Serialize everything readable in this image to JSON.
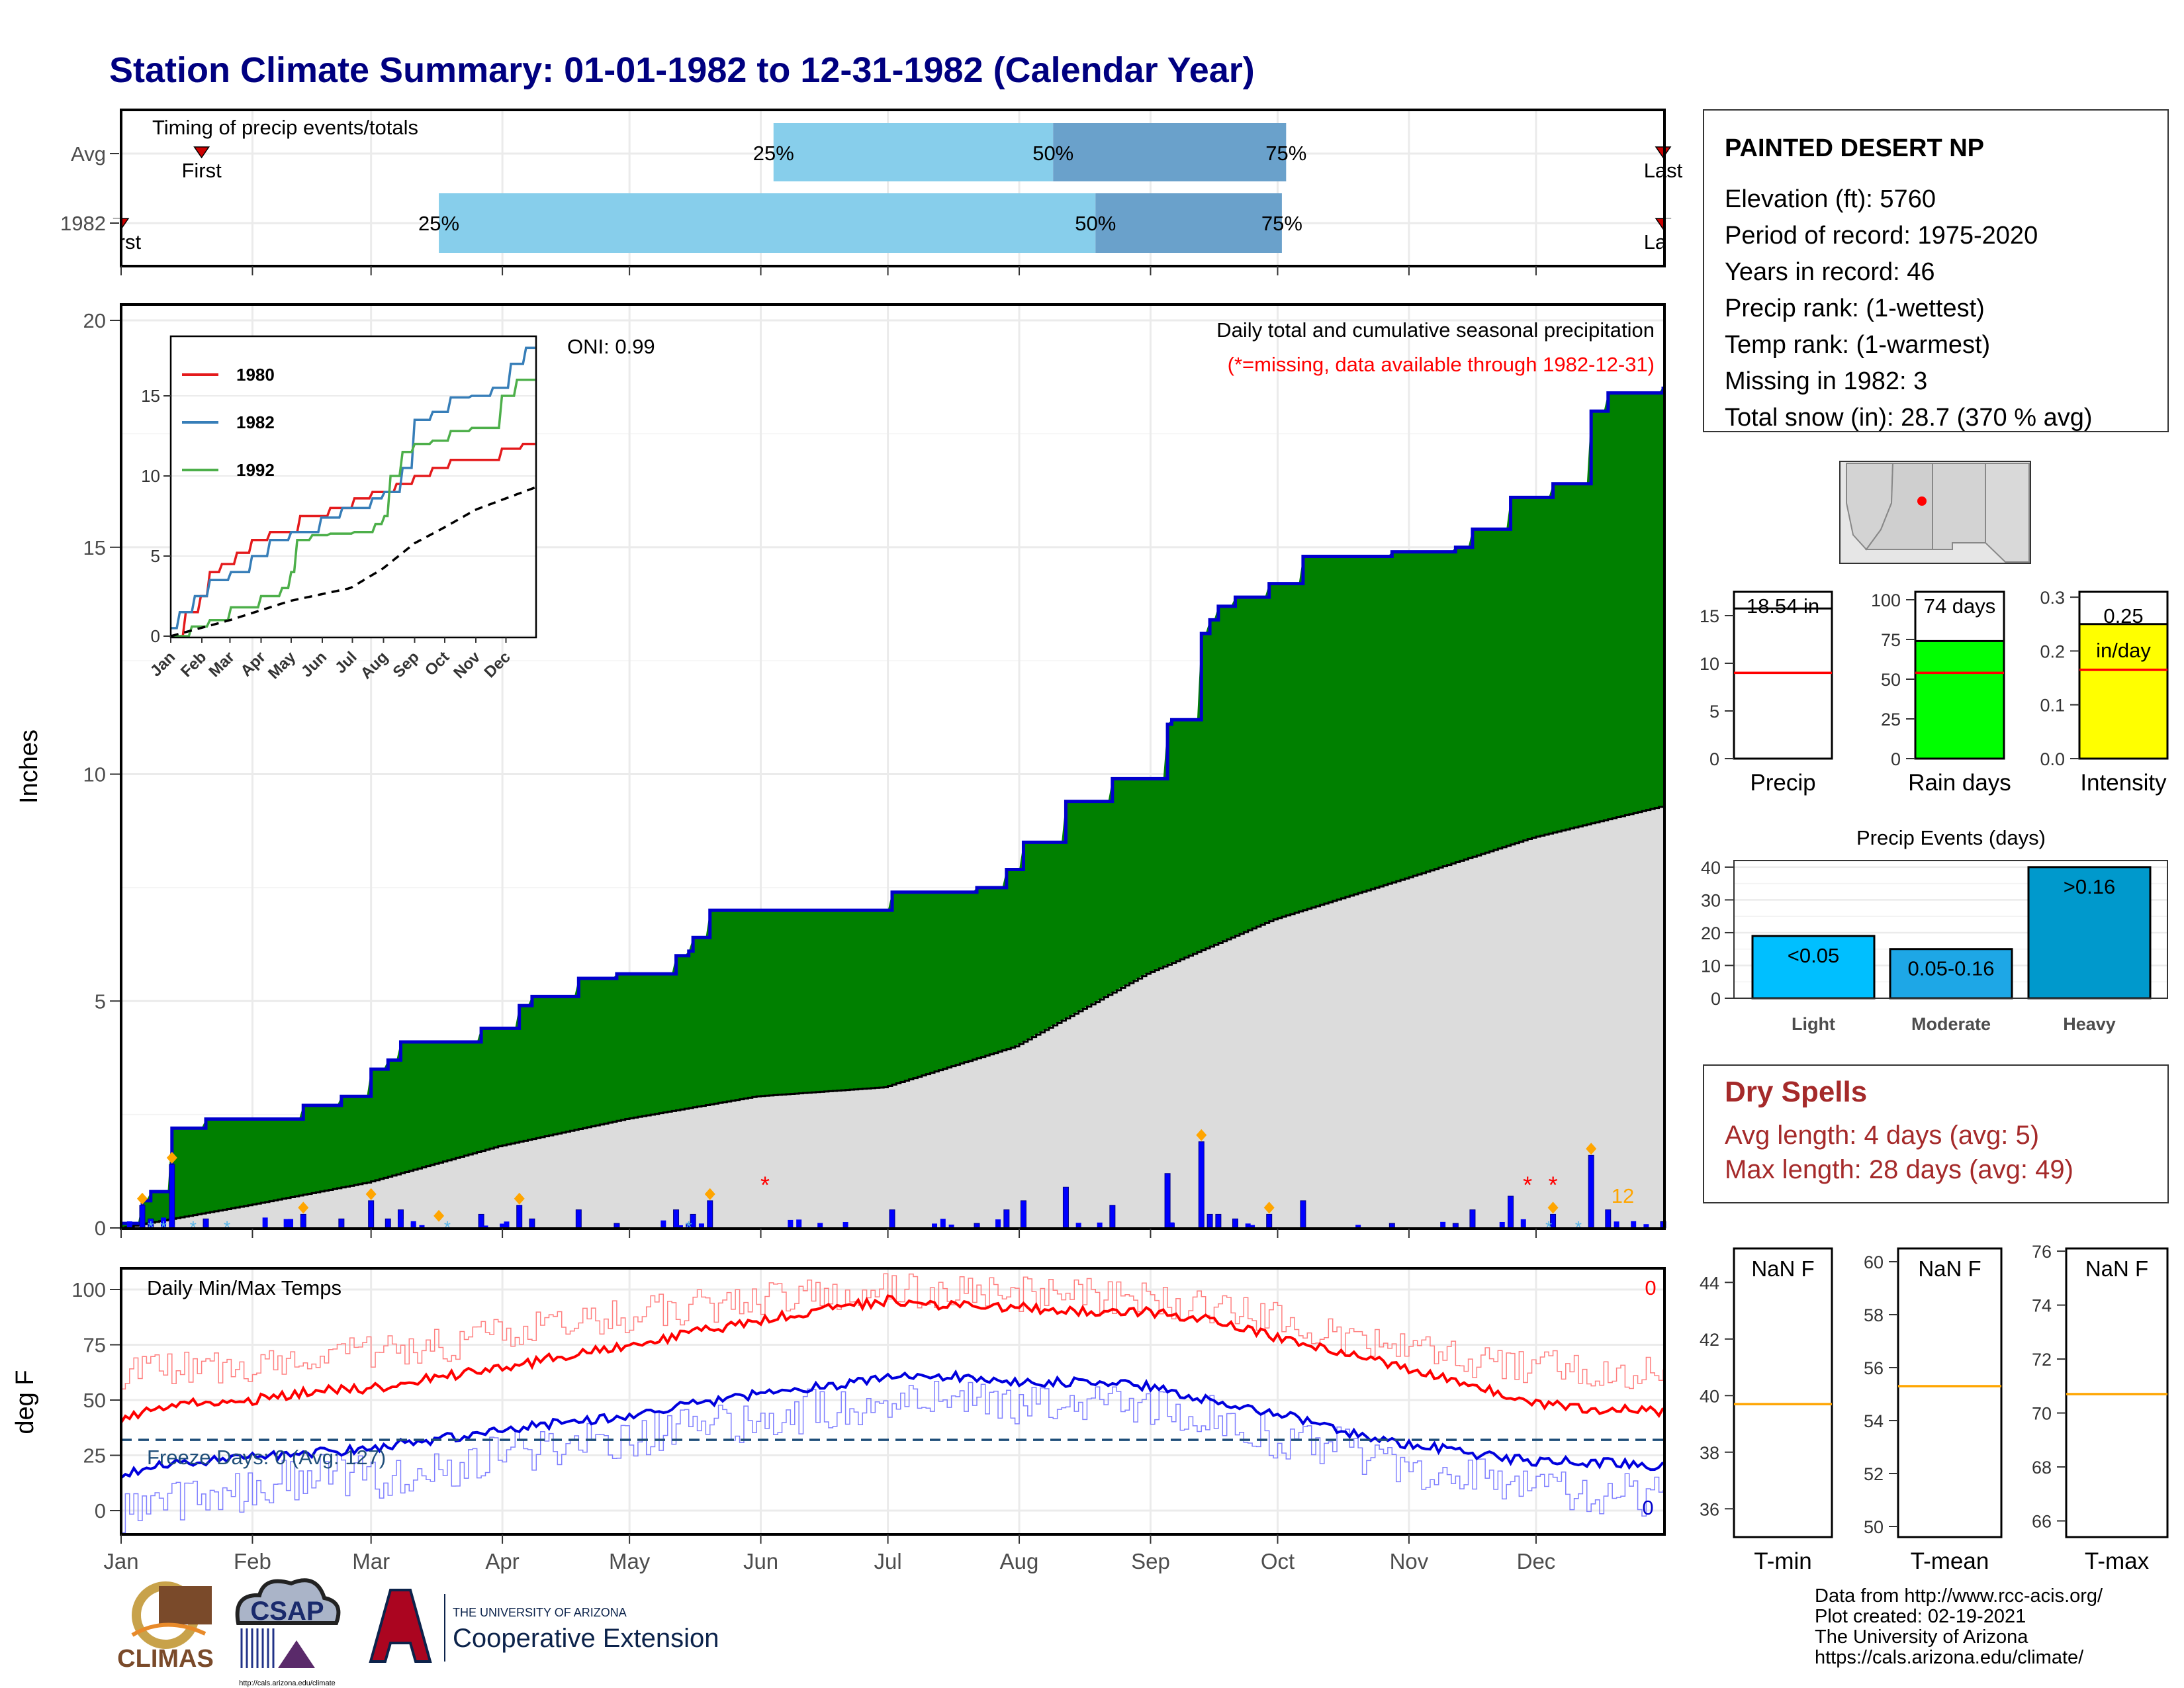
{
  "page_title": "Station Climate Summary: 01-01-1982 to 12-31-1982 (Calendar Year)",
  "months": [
    "Jan",
    "Feb",
    "Mar",
    "Apr",
    "May",
    "Jun",
    "Jul",
    "Aug",
    "Sep",
    "Oct",
    "Nov",
    "Dec"
  ],
  "colors": {
    "title": "#000080",
    "green": "#008000",
    "blue_line": "#0000cc",
    "climo_fill": "#dcdcdc",
    "light_blue": "#87ceeb",
    "mid_blue": "#6aa1cb",
    "red": "#ff0000",
    "orange": "#ffa500",
    "yellow": "#ffff00",
    "bright_green": "#00ff00",
    "dry_spell": "#a52a2a"
  },
  "timing": {
    "label": "Timing of precip events/totals",
    "rows": [
      "Avg",
      "1982"
    ],
    "first_label": "First",
    "last_label": "Last",
    "pct_labels": [
      "25%",
      "50%",
      "75%"
    ],
    "avg": {
      "first_day": 20,
      "p25": 155,
      "p50": 221,
      "p75": 276,
      "last_day": 365
    },
    "y1982": {
      "first_day": 1,
      "p25": 76,
      "p50": 231,
      "p75": 275,
      "last_day": 365
    }
  },
  "precip_panel": {
    "y_label": "Inches",
    "y_ticks": [
      "0",
      "5",
      "10",
      "15",
      "20"
    ],
    "y_max": 20,
    "oni_label": "ONI: 0.99",
    "subtitle": "Daily total and cumulative seasonal precipitation",
    "missing_note": "(*=missing, data available through 1982-12-31)",
    "snow_count_label": "12",
    "missing_days": [
      153,
      333,
      339
    ]
  },
  "inset": {
    "y_ticks": [
      "0",
      "5",
      "10",
      "15"
    ],
    "month_labels": [
      "Jan",
      "Feb",
      "Mar",
      "Apr",
      "May",
      "Jun",
      "Jul",
      "Aug",
      "Sep",
      "Oct",
      "Nov",
      "Dec"
    ],
    "legend": [
      {
        "name": "1980",
        "color": "#e41a1c"
      },
      {
        "name": "1982",
        "color": "#377eb8"
      },
      {
        "name": "1992",
        "color": "#4daf4a"
      }
    ]
  },
  "temp_panel": {
    "y_label": "deg F",
    "title": "Daily Min/Max Temps",
    "y_ticks": [
      "0",
      "25",
      "50",
      "75",
      "100"
    ],
    "freeze_label": "Freeze Days: 0 (Avg: 127)",
    "count_top": "0",
    "count_bottom": "0"
  },
  "station": {
    "name": "PAINTED DESERT NP",
    "lines": [
      "Elevation (ft): 5760",
      "Period of record: 1975-2020",
      "Years in record: 46",
      "Precip rank:  (1-wettest)",
      "Temp rank:  (1-warmest)",
      "Missing in 1982: 3",
      "Total snow (in): 28.7 (370 % avg)"
    ]
  },
  "summary_bars": [
    {
      "label": "Precip",
      "value_label": "18.54 in",
      "unit_label": "",
      "value": 18.54,
      "avg": 9.0,
      "ymax": 17.5,
      "ticks": [
        "0",
        "5",
        "10",
        "15"
      ],
      "tick_vals": [
        0,
        5,
        10,
        15
      ],
      "fill": "#ffffff"
    },
    {
      "label": "Rain days",
      "value_label": "74 days",
      "unit_label": "",
      "value": 74,
      "avg": 54,
      "ymax": 105,
      "ticks": [
        "0",
        "25",
        "50",
        "75",
        "100"
      ],
      "tick_vals": [
        0,
        25,
        50,
        75,
        100
      ],
      "fill": "#00ff00"
    },
    {
      "label": "Intensity",
      "value_label": "0.25",
      "unit_label": "in/day",
      "value": 0.25,
      "avg": 0.165,
      "ymax": 0.31,
      "ticks": [
        "0.0",
        "0.1",
        "0.2",
        "0.3"
      ],
      "tick_vals": [
        0,
        0.1,
        0.2,
        0.3
      ],
      "fill": "#ffff00"
    }
  ],
  "precip_events": {
    "title": "Precip Events (days)",
    "y_ticks": [
      "0",
      "10",
      "20",
      "30",
      "40"
    ],
    "bars": [
      {
        "category": "Light",
        "label": "<0.05",
        "value": 19
      },
      {
        "category": "Moderate",
        "label": "0.05-0.16",
        "value": 15
      },
      {
        "category": "Heavy",
        "label": ">0.16",
        "value": 40
      }
    ]
  },
  "dry_spells": {
    "title": "Dry Spells",
    "lines": [
      "Avg length: 4 days (avg: 5)",
      "Max length: 28 days (avg: 49)"
    ]
  },
  "temp_boxes": [
    {
      "label": "T-min",
      "value_label": "NaN F",
      "ticks": [
        "36",
        "38",
        "40",
        "42",
        "44"
      ],
      "tick_vals": [
        36,
        38,
        40,
        42,
        44
      ],
      "ymin": 35,
      "ymax": 45.2,
      "avg": 39.7
    },
    {
      "label": "T-mean",
      "value_label": "NaN F",
      "ticks": [
        "50",
        "52",
        "54",
        "56",
        "58",
        "60"
      ],
      "tick_vals": [
        50,
        52,
        54,
        56,
        58,
        60
      ],
      "ymin": 49.6,
      "ymax": 60.5,
      "avg": 55.3
    },
    {
      "label": "T-max",
      "value_label": "NaN F",
      "ticks": [
        "66",
        "68",
        "70",
        "72",
        "74",
        "76"
      ],
      "tick_vals": [
        66,
        68,
        70,
        72,
        74,
        76
      ],
      "ymin": 65.4,
      "ymax": 76.1,
      "avg": 70.7
    }
  ],
  "footer": {
    "credits": [
      "Data from http://www.rcc-acis.org/",
      "Plot created: 02-19-2021",
      "The University of Arizona",
      "https://cals.arizona.edu/climate/"
    ],
    "logo_climas": "CLIMAS",
    "logo_csap": "CSAP",
    "csap_url": "http://cals.arizona.edu/climate",
    "ua_line1": "THE UNIVERSITY OF ARIZONA",
    "ua_line2": "Cooperative Extension"
  },
  "chart_data": [
    {
      "type": "area",
      "title": "Daily total and cumulative seasonal precipitation",
      "xlabel": "",
      "ylabel": "Inches",
      "ylim": [
        0,
        20
      ],
      "series": [
        {
          "name": "",
          "x_day": [
            1,
            6,
            8,
            13,
            21,
            33,
            44,
            53,
            60,
            64,
            67,
            76,
            86,
            95,
            98,
            109,
            118,
            127,
            132,
            135,
            136,
            140,
            144,
            164,
            183,
            186,
            203,
            210,
            214,
            224,
            235,
            248,
            249,
            254,
            256,
            258,
            260,
            264,
            272,
            280,
            286,
            301,
            316,
            320,
            329,
            339,
            345,
            348,
            352,
            355,
            356,
            360,
            365
          ],
          "values": [
            0.1,
            0.6,
            0.8,
            2.2,
            2.4,
            2.4,
            2.7,
            2.9,
            3.5,
            3.7,
            4.1,
            4.1,
            4.4,
            4.9,
            5.1,
            5.5,
            5.6,
            5.6,
            6.0,
            6.1,
            6.4,
            7.0,
            7.0,
            7.0,
            7.4,
            7.4,
            7.5,
            7.9,
            8.5,
            9.4,
            9.9,
            11.1,
            11.2,
            11.2,
            13.1,
            13.4,
            13.7,
            13.9,
            14.2,
            14.8,
            14.8,
            14.9,
            15.0,
            15.4,
            16.1,
            16.4,
            16.4,
            18.0,
            18.4,
            18.4,
            18.4,
            18.4,
            18.54
          ]
        },
        {
          "name": "",
          "x_day": [
            1,
            31,
            59,
            90,
            120,
            151,
            181,
            212,
            243,
            273,
            304,
            334,
            365
          ],
          "values": [
            0.0,
            0.5,
            1.0,
            1.8,
            2.4,
            2.9,
            3.1,
            4.0,
            5.6,
            6.8,
            7.7,
            8.6,
            9.3
          ]
        }
      ]
    },
    {
      "type": "bar",
      "title": "Precip Events (days)",
      "categories": [
        "Light",
        "Moderate",
        "Heavy"
      ],
      "values": [
        19,
        15,
        40
      ],
      "ylim": [
        0,
        42
      ]
    },
    {
      "type": "line",
      "title": "Daily Min/Max Temps",
      "ylabel": "deg F",
      "ylim": [
        -12,
        108
      ],
      "x_day": [
        1,
        15,
        32,
        46,
        60,
        74,
        91,
        105,
        121,
        135,
        152,
        166,
        182,
        196,
        213,
        227,
        244,
        258,
        274,
        288,
        305,
        319,
        335,
        350,
        365
      ],
      "series": [
        {
          "name": "",
          "values": [
            42,
            48,
            50,
            54,
            55,
            60,
            64,
            70,
            75,
            80,
            86,
            91,
            95,
            93,
            92,
            90,
            90,
            86,
            78,
            72,
            64,
            58,
            48,
            46,
            45
          ]
        },
        {
          "name": "",
          "values": [
            17,
            22,
            24,
            26,
            28,
            32,
            36,
            40,
            43,
            48,
            53,
            56,
            60,
            61,
            58,
            58,
            56,
            50,
            44,
            36,
            30,
            26,
            22,
            22,
            20
          ]
        },
        {
          "name": "",
          "values": [
            63,
            64,
            66,
            70,
            72,
            74,
            80,
            85,
            88,
            92,
            95,
            98,
            100,
            99,
            98,
            98,
            95,
            92,
            86,
            78,
            72,
            68,
            65,
            64,
            62
          ]
        },
        {
          "name": "",
          "values": [
            0,
            5,
            10,
            16,
            15,
            18,
            25,
            28,
            34,
            36,
            42,
            46,
            50,
            52,
            48,
            50,
            46,
            44,
            32,
            28,
            20,
            16,
            10,
            8,
            5
          ]
        }
      ]
    }
  ]
}
